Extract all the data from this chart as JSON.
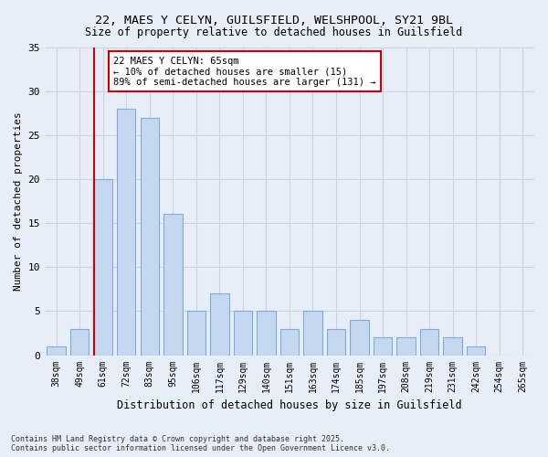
{
  "title1": "22, MAES Y CELYN, GUILSFIELD, WELSHPOOL, SY21 9BL",
  "title2": "Size of property relative to detached houses in Guilsfield",
  "xlabel": "Distribution of detached houses by size in Guilsfield",
  "ylabel": "Number of detached properties",
  "bar_labels": [
    "38sqm",
    "49sqm",
    "61sqm",
    "72sqm",
    "83sqm",
    "95sqm",
    "106sqm",
    "117sqm",
    "129sqm",
    "140sqm",
    "151sqm",
    "163sqm",
    "174sqm",
    "185sqm",
    "197sqm",
    "208sqm",
    "219sqm",
    "231sqm",
    "242sqm",
    "254sqm",
    "265sqm"
  ],
  "bar_values": [
    1,
    3,
    20,
    28,
    27,
    16,
    5,
    7,
    5,
    5,
    3,
    5,
    3,
    4,
    2,
    2,
    3,
    2,
    1,
    0
  ],
  "bar_color": "#c5d8f0",
  "bar_edge_color": "#7aacde",
  "grid_color": "#c8d4e8",
  "background_color": "#e8eef8",
  "vline_index": 2,
  "vline_color": "#cc0000",
  "annotation_text": "22 MAES Y CELYN: 65sqm\n← 10% of detached houses are smaller (15)\n89% of semi-detached houses are larger (131) →",
  "annotation_box_color": "#ffffff",
  "annotation_box_edge": "#cc0000",
  "footnote": "Contains HM Land Registry data © Crown copyright and database right 2025.\nContains public sector information licensed under the Open Government Licence v3.0.",
  "ylim": [
    0,
    35
  ],
  "yticks": [
    0,
    5,
    10,
    15,
    20,
    25,
    30,
    35
  ]
}
